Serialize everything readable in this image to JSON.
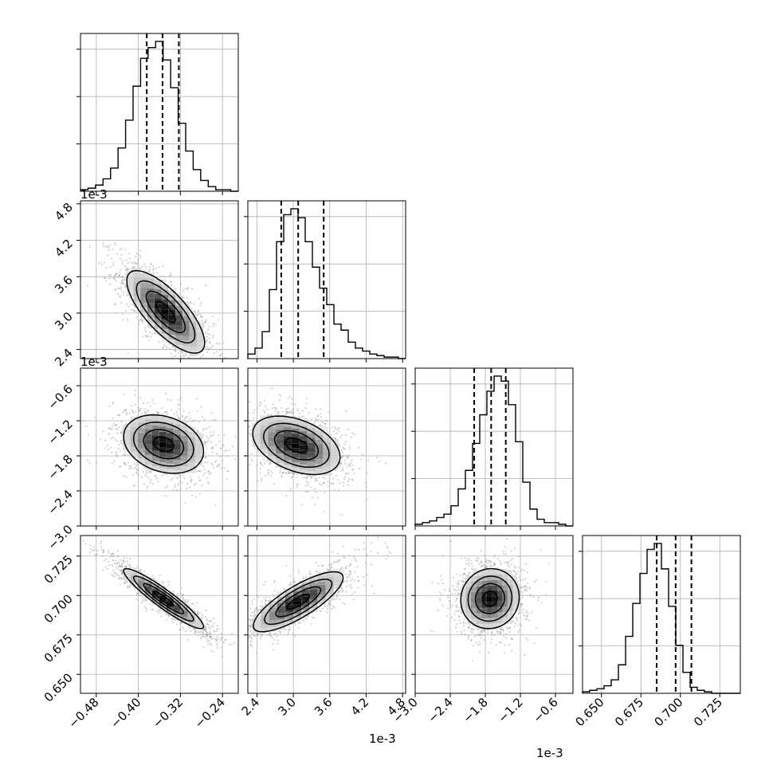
{
  "chart_data": {
    "type": "corner",
    "parameters": 4,
    "axis_ranges": [
      [
        -0.51,
        -0.21
      ],
      [
        2.25,
        4.85
      ],
      [
        -3.0,
        -0.3
      ],
      [
        0.638,
        0.738
      ]
    ],
    "axis_scale_labels": [
      "1e-3",
      "1e-3",
      "1e-3",
      ""
    ],
    "ticks": {
      "p0": {
        "values": [
          -0.48,
          -0.4,
          -0.32,
          -0.24
        ],
        "labels": [
          "−0.48",
          "−0.40",
          "−0.32",
          "−0.24"
        ]
      },
      "p1": {
        "values": [
          2.4,
          3.0,
          3.6,
          4.2,
          4.8
        ],
        "labels": [
          "2.4",
          "3.0",
          "3.6",
          "4.2",
          "4.8"
        ]
      },
      "p2": {
        "values": [
          -3.0,
          -2.4,
          -1.8,
          -1.2,
          -0.6
        ],
        "labels": [
          "−3.0",
          "−2.4",
          "−1.8",
          "−1.2",
          "−0.6"
        ]
      },
      "p3": {
        "values": [
          0.65,
          0.675,
          0.7,
          0.725
        ],
        "labels": [
          "0.650",
          "0.675",
          "0.700",
          "0.725"
        ]
      }
    },
    "quantiles": [
      [
        -0.384,
        -0.354,
        -0.323
      ],
      [
        2.8,
        3.08,
        3.5
      ],
      [
        -1.99,
        -1.7,
        -1.45
      ],
      [
        0.685,
        0.697,
        0.707
      ]
    ],
    "histograms": [
      {
        "param": 0,
        "edges_range": [
          -0.51,
          -0.21
        ],
        "bins": 21,
        "counts": [
          1,
          2,
          4,
          8,
          15,
          28,
          46,
          68,
          86,
          93,
          97,
          85,
          67,
          44,
          26,
          14,
          7,
          3,
          1,
          1,
          0
        ]
      },
      {
        "param": 1,
        "edges_range": [
          2.25,
          4.85
        ],
        "bins": 22,
        "counts": [
          3,
          7,
          18,
          46,
          78,
          96,
          100,
          94,
          78,
          61,
          47,
          36,
          23,
          19,
          11,
          7,
          5,
          3,
          2,
          1,
          1,
          0
        ]
      },
      {
        "param": 2,
        "edges_range": [
          -3.0,
          -0.3
        ],
        "bins": 22,
        "counts": [
          1,
          2,
          3,
          5,
          7,
          12,
          22,
          33,
          49,
          66,
          80,
          89,
          86,
          72,
          50,
          26,
          10,
          4,
          2,
          2,
          1,
          0
        ]
      },
      {
        "param": 3,
        "edges_range": [
          0.638,
          0.738
        ],
        "bins": 22,
        "counts": [
          1,
          2,
          3,
          5,
          9,
          19,
          38,
          60,
          80,
          96,
          100,
          83,
          58,
          32,
          14,
          4,
          2,
          1,
          0,
          0,
          0,
          0
        ]
      }
    ],
    "density_2d": [
      {
        "x_param": 0,
        "y_param": 1,
        "center": [
          -0.348,
          3.02
        ],
        "sigma": [
          0.037,
          0.34
        ],
        "correlation": -0.75
      },
      {
        "x_param": 0,
        "y_param": 2,
        "center": [
          -0.352,
          -1.6
        ],
        "sigma": [
          0.038,
          0.25
        ],
        "correlation": -0.25
      },
      {
        "x_param": 1,
        "y_param": 2,
        "center": [
          3.05,
          -1.62
        ],
        "sigma": [
          0.36,
          0.25
        ],
        "correlation": -0.4
      },
      {
        "x_param": 0,
        "y_param": 3,
        "center": [
          -0.352,
          0.698
        ],
        "sigma": [
          0.038,
          0.0095
        ],
        "correlation": -0.93
      },
      {
        "x_param": 1,
        "y_param": 3,
        "center": [
          3.08,
          0.696
        ],
        "sigma": [
          0.37,
          0.0095
        ],
        "correlation": 0.8
      },
      {
        "x_param": 2,
        "y_param": 3,
        "center": [
          -1.72,
          0.698
        ],
        "sigma": [
          0.25,
          0.0095
        ],
        "correlation": 0.05
      }
    ],
    "contour_levels_sigma": [
      0.5,
      1.0,
      1.5,
      2.0
    ],
    "grid": true,
    "colors": {
      "points": "#999999",
      "density": "#000000",
      "contours": "#000000",
      "quantile_lines": "#000000",
      "grid": "#b0b0b0"
    }
  }
}
